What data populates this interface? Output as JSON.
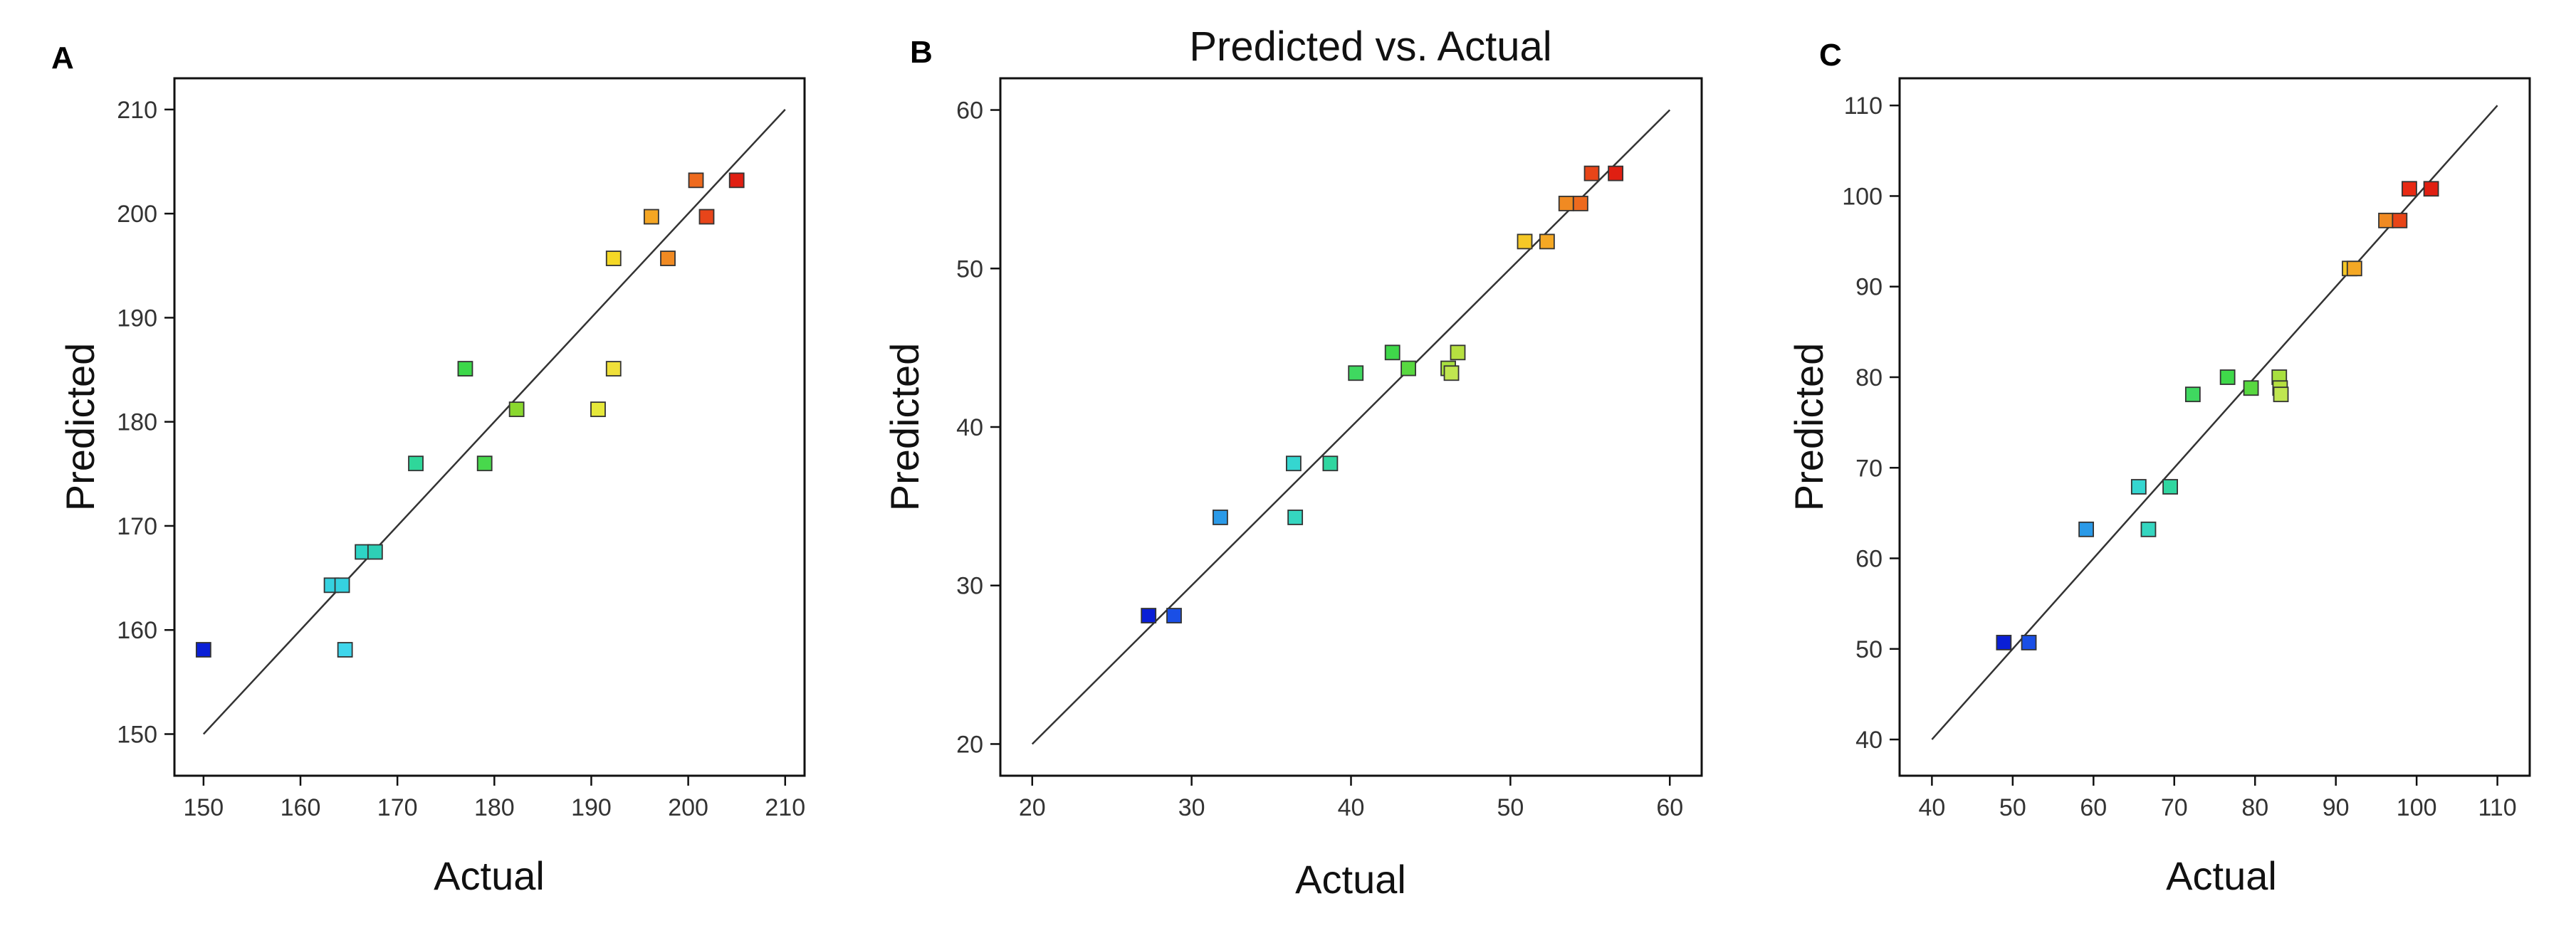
{
  "chart_data": [
    {
      "type": "scatter",
      "panel_label": "A",
      "title": "",
      "xlabel": "Actual",
      "ylabel": "Predicted",
      "xlim": [
        147,
        212
      ],
      "ylim": [
        146,
        213
      ],
      "xticks": [
        150,
        160,
        170,
        180,
        190,
        200,
        210
      ],
      "yticks": [
        150,
        160,
        170,
        180,
        190,
        200,
        210
      ],
      "reference_line": [
        [
          150,
          150
        ],
        [
          210,
          210
        ]
      ],
      "points": [
        {
          "x": 150.0,
          "y": 158.1,
          "color": "#0a1fd6"
        },
        {
          "x": 163.2,
          "y": 164.3,
          "color": "#35d2e0"
        },
        {
          "x": 164.3,
          "y": 164.3,
          "color": "#35d2e0"
        },
        {
          "x": 164.6,
          "y": 158.1,
          "color": "#3fd6ec"
        },
        {
          "x": 166.4,
          "y": 167.5,
          "color": "#2ed4c6"
        },
        {
          "x": 167.7,
          "y": 167.5,
          "color": "#2ed0b6"
        },
        {
          "x": 171.9,
          "y": 176.0,
          "color": "#2fd79a"
        },
        {
          "x": 177.0,
          "y": 185.1,
          "color": "#3dd84a"
        },
        {
          "x": 179.0,
          "y": 176.0,
          "color": "#48d84c"
        },
        {
          "x": 182.3,
          "y": 181.2,
          "color": "#8ad82e"
        },
        {
          "x": 190.7,
          "y": 181.2,
          "color": "#e6e83a"
        },
        {
          "x": 192.3,
          "y": 195.7,
          "color": "#f5d826"
        },
        {
          "x": 192.3,
          "y": 185.1,
          "color": "#f0e03a"
        },
        {
          "x": 196.2,
          "y": 199.7,
          "color": "#f5a623"
        },
        {
          "x": 197.9,
          "y": 195.7,
          "color": "#f08a22"
        },
        {
          "x": 200.8,
          "y": 203.2,
          "color": "#ee6a1e"
        },
        {
          "x": 201.9,
          "y": 199.7,
          "color": "#e8451a"
        },
        {
          "x": 205.0,
          "y": 203.2,
          "color": "#e01f12"
        }
      ]
    },
    {
      "type": "scatter",
      "panel_label": "B",
      "title": "Predicted vs. Actual",
      "xlabel": "Actual",
      "ylabel": "Predicted",
      "xlim": [
        18,
        62
      ],
      "ylim": [
        18,
        62
      ],
      "xticks": [
        20,
        30,
        40,
        50,
        60
      ],
      "yticks": [
        20,
        30,
        40,
        50,
        60
      ],
      "reference_line": [
        [
          20,
          20
        ],
        [
          60,
          60
        ]
      ],
      "points": [
        {
          "x": 27.3,
          "y": 28.1,
          "color": "#0a1fd6"
        },
        {
          "x": 28.9,
          "y": 28.1,
          "color": "#1a4fe6"
        },
        {
          "x": 31.8,
          "y": 34.3,
          "color": "#2a9ae8"
        },
        {
          "x": 36.4,
          "y": 37.7,
          "color": "#35d6d0"
        },
        {
          "x": 36.5,
          "y": 34.3,
          "color": "#35d6c0"
        },
        {
          "x": 38.7,
          "y": 37.7,
          "color": "#30d6a0"
        },
        {
          "x": 40.3,
          "y": 43.4,
          "color": "#3fd860"
        },
        {
          "x": 42.6,
          "y": 44.7,
          "color": "#3fd84a"
        },
        {
          "x": 43.6,
          "y": 43.7,
          "color": "#58d840"
        },
        {
          "x": 46.1,
          "y": 43.7,
          "color": "#a8e040"
        },
        {
          "x": 46.3,
          "y": 43.4,
          "color": "#c0e650"
        },
        {
          "x": 46.7,
          "y": 44.7,
          "color": "#b6e040"
        },
        {
          "x": 50.9,
          "y": 51.7,
          "color": "#f5c826"
        },
        {
          "x": 52.3,
          "y": 51.7,
          "color": "#f5a824"
        },
        {
          "x": 53.5,
          "y": 54.1,
          "color": "#f08a22"
        },
        {
          "x": 54.4,
          "y": 54.1,
          "color": "#ee6a1e"
        },
        {
          "x": 55.1,
          "y": 56.0,
          "color": "#e84518"
        },
        {
          "x": 56.6,
          "y": 56.0,
          "color": "#e01f12"
        }
      ]
    },
    {
      "type": "scatter",
      "panel_label": "C",
      "title": "",
      "xlabel": "Actual",
      "ylabel": "Predicted",
      "xlim": [
        36,
        114
      ],
      "ylim": [
        36,
        113
      ],
      "xticks": [
        40,
        50,
        60,
        70,
        80,
        90,
        100,
        110
      ],
      "yticks": [
        40,
        50,
        60,
        70,
        80,
        90,
        100,
        110
      ],
      "reference_line": [
        [
          40,
          40
        ],
        [
          110,
          110
        ]
      ],
      "points": [
        {
          "x": 48.9,
          "y": 50.7,
          "color": "#0a1fd6"
        },
        {
          "x": 52.0,
          "y": 50.7,
          "color": "#1a4fe6"
        },
        {
          "x": 59.1,
          "y": 63.2,
          "color": "#2a9ae8"
        },
        {
          "x": 65.6,
          "y": 67.9,
          "color": "#35d6d0"
        },
        {
          "x": 66.8,
          "y": 63.2,
          "color": "#35d6c0"
        },
        {
          "x": 69.5,
          "y": 67.9,
          "color": "#30d6a0"
        },
        {
          "x": 72.3,
          "y": 78.1,
          "color": "#3fd860"
        },
        {
          "x": 76.6,
          "y": 80.0,
          "color": "#3fd84a"
        },
        {
          "x": 79.5,
          "y": 78.8,
          "color": "#58d840"
        },
        {
          "x": 83.0,
          "y": 80.0,
          "color": "#a8e040"
        },
        {
          "x": 83.1,
          "y": 78.8,
          "color": "#b6e040"
        },
        {
          "x": 83.2,
          "y": 78.1,
          "color": "#c0e650"
        },
        {
          "x": 91.7,
          "y": 92.0,
          "color": "#f5c826"
        },
        {
          "x": 92.3,
          "y": 92.0,
          "color": "#f5a824"
        },
        {
          "x": 96.2,
          "y": 97.3,
          "color": "#f08a22"
        },
        {
          "x": 97.9,
          "y": 97.3,
          "color": "#e84518"
        },
        {
          "x": 99.1,
          "y": 100.8,
          "color": "#e82a14"
        },
        {
          "x": 101.8,
          "y": 100.8,
          "color": "#e01f12"
        }
      ]
    }
  ]
}
